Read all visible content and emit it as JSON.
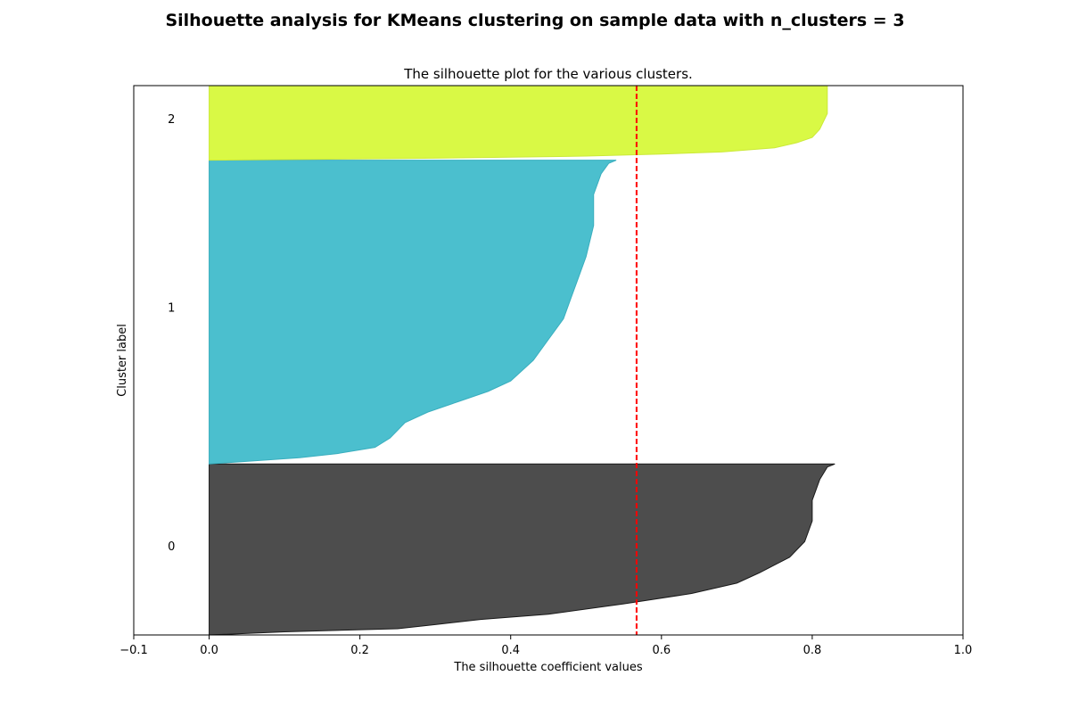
{
  "suptitle": "Silhouette analysis for KMeans clustering on sample data with n_clusters = 3",
  "chart_data": {
    "type": "area",
    "title": "The silhouette plot for the various clusters.",
    "xlabel": "The silhouette coefficient values",
    "ylabel": "Cluster label",
    "xlim": [
      -0.1,
      1.0
    ],
    "ylim": [
      0,
      530
    ],
    "xticks": [
      -0.1,
      0.0,
      0.2,
      0.4,
      0.6,
      0.8,
      1.0
    ],
    "xtick_labels": [
      "−0.1",
      "0.0",
      "0.2",
      "0.4",
      "0.6",
      "0.8",
      "1.0"
    ],
    "grid": false,
    "average_silhouette_score": 0.567,
    "average_line_color": "#ff0000",
    "clusters": [
      {
        "label": "0",
        "color": "#4d4d4d",
        "edge_color": "#1a1a1a",
        "y_lower": 0,
        "label_y": 86,
        "profile": [
          [
            0,
            0.0
          ],
          [
            3,
            0.1
          ],
          [
            6,
            0.25
          ],
          [
            10,
            0.3
          ],
          [
            15,
            0.36
          ],
          [
            20,
            0.45
          ],
          [
            30,
            0.55
          ],
          [
            40,
            0.64
          ],
          [
            50,
            0.7
          ],
          [
            60,
            0.73
          ],
          [
            75,
            0.77
          ],
          [
            90,
            0.79
          ],
          [
            110,
            0.8
          ],
          [
            130,
            0.8
          ],
          [
            150,
            0.81
          ],
          [
            162,
            0.82
          ],
          [
            165,
            0.83
          ]
        ]
      },
      {
        "label": "1",
        "color": "#4bbfce",
        "edge_color": "#3aaebe",
        "y_lower": 165,
        "label_y": 316,
        "profile": [
          [
            0,
            0.0
          ],
          [
            3,
            0.06
          ],
          [
            6,
            0.12
          ],
          [
            10,
            0.17
          ],
          [
            16,
            0.22
          ],
          [
            25,
            0.24
          ],
          [
            40,
            0.26
          ],
          [
            50,
            0.29
          ],
          [
            60,
            0.33
          ],
          [
            70,
            0.37
          ],
          [
            80,
            0.4
          ],
          [
            100,
            0.43
          ],
          [
            120,
            0.45
          ],
          [
            140,
            0.47
          ],
          [
            160,
            0.48
          ],
          [
            180,
            0.49
          ],
          [
            200,
            0.5
          ],
          [
            230,
            0.51
          ],
          [
            260,
            0.51
          ],
          [
            280,
            0.52
          ],
          [
            290,
            0.53
          ],
          [
            293,
            0.54
          ]
        ]
      },
      {
        "label": "2",
        "color": "#d9f945",
        "edge_color": "#cbe939",
        "y_lower": 458,
        "label_y": 498,
        "profile": [
          [
            0,
            0.0
          ],
          [
            2,
            0.3
          ],
          [
            4,
            0.5
          ],
          [
            6,
            0.6
          ],
          [
            8,
            0.68
          ],
          [
            12,
            0.75
          ],
          [
            17,
            0.78
          ],
          [
            22,
            0.8
          ],
          [
            30,
            0.81
          ],
          [
            45,
            0.82
          ],
          [
            65,
            0.82
          ],
          [
            72,
            0.82
          ]
        ]
      }
    ]
  }
}
